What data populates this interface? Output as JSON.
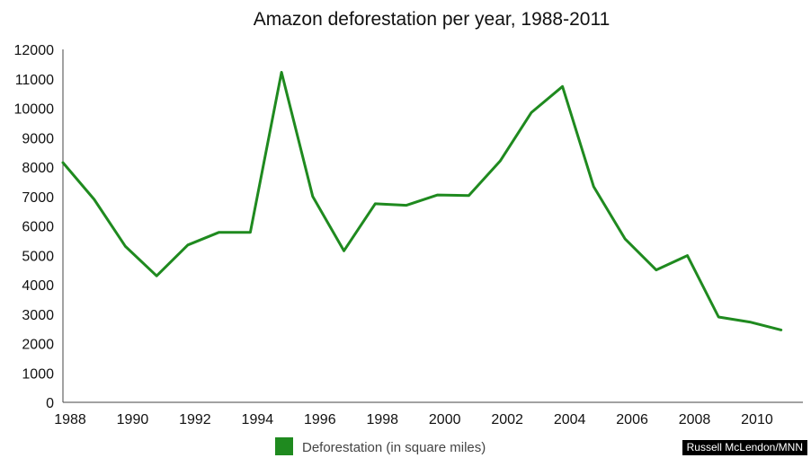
{
  "chart_data": {
    "type": "line",
    "title": "Amazon deforestation per year, 1988-2011",
    "xlabel": "",
    "ylabel": "",
    "x": [
      1988,
      1989,
      1990,
      1991,
      1992,
      1993,
      1994,
      1995,
      1996,
      1997,
      1998,
      1999,
      2000,
      2001,
      2002,
      2003,
      2004,
      2005,
      2006,
      2007,
      2008,
      2009,
      2010,
      2011
    ],
    "series": [
      {
        "name": "Deforestation (in square miles)",
        "color": "#1f8a1f",
        "values": [
          8150,
          6900,
          5300,
          4300,
          5350,
          5780,
          5780,
          11220,
          7000,
          5150,
          6750,
          6700,
          7050,
          7030,
          8200,
          9850,
          10740,
          7330,
          5560,
          4500,
          4990,
          2900,
          2730,
          2460
        ]
      }
    ],
    "xlim": [
      1988,
      2011.7
    ],
    "ylim": [
      0,
      12000
    ],
    "x_ticks": [
      "1988",
      "1990",
      "1992",
      "1994",
      "1996",
      "1998",
      "2000",
      "2002",
      "2004",
      "2006",
      "2008",
      "2010"
    ],
    "y_ticks": [
      "0",
      "1000",
      "2000",
      "3000",
      "4000",
      "5000",
      "6000",
      "7000",
      "8000",
      "9000",
      "10000",
      "11000",
      "12000"
    ],
    "grid": false,
    "legend_position": "bottom"
  },
  "credit": "Russell McLendon/MNN"
}
